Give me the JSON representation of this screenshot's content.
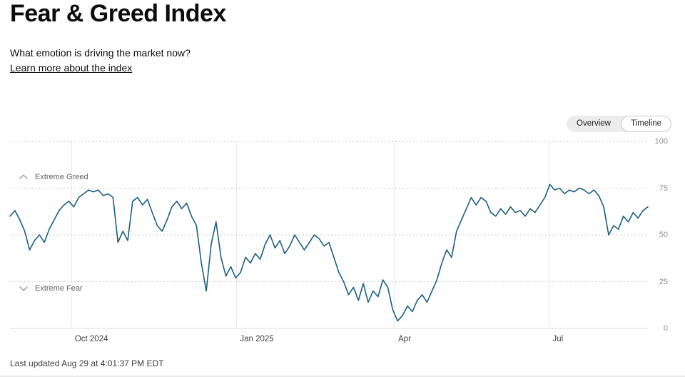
{
  "header": {
    "title": "Fear & Greed Index",
    "subtitle": "What emotion is driving the market now?",
    "link_label": "Learn more about the index"
  },
  "toggle": {
    "options": [
      {
        "label": "Overview",
        "selected": false
      },
      {
        "label": "Timeline",
        "selected": true
      }
    ]
  },
  "chart_data": {
    "type": "line",
    "title": "Fear & Greed Index timeline",
    "legend": "off",
    "grid": "horizontal-dashed, monthly-vertical",
    "ylim": [
      0,
      100
    ],
    "y_ticks": [
      0,
      25,
      50,
      75,
      100
    ],
    "x_ticks": [
      {
        "label": "Oct 2024",
        "pos": 0.096
      },
      {
        "label": "Jan 2025",
        "pos": 0.355
      },
      {
        "label": "Apr",
        "pos": 0.603
      },
      {
        "label": "Jul",
        "pos": 0.845
      }
    ],
    "zones": [
      {
        "label": "Extreme Greed",
        "threshold": 75
      },
      {
        "label": "Extreme Fear",
        "threshold": 25
      }
    ],
    "line_color": "#1a5f7e",
    "x_range_note": "approx Sep 2024 through Aug 29 2025, evenly spaced samples",
    "values": [
      60,
      63,
      58,
      52,
      42,
      47,
      50,
      46,
      53,
      58,
      63,
      66,
      68,
      65,
      70,
      72,
      74,
      73,
      74,
      71,
      72,
      70,
      46,
      52,
      47,
      68,
      70,
      66,
      69,
      62,
      55,
      52,
      58,
      65,
      68,
      64,
      67,
      60,
      55,
      35,
      20,
      45,
      57,
      38,
      28,
      33,
      27,
      30,
      38,
      35,
      40,
      37,
      45,
      50,
      43,
      47,
      40,
      44,
      50,
      46,
      42,
      46,
      50,
      48,
      44,
      46,
      38,
      30,
      25,
      18,
      22,
      15,
      24,
      14,
      20,
      17,
      26,
      22,
      10,
      4,
      7,
      12,
      9,
      15,
      18,
      14,
      20,
      26,
      35,
      42,
      38,
      52,
      58,
      64,
      70,
      66,
      70,
      68,
      62,
      60,
      64,
      61,
      65,
      62,
      63,
      60,
      64,
      62,
      66,
      70,
      77,
      74,
      75,
      72,
      74,
      73,
      75,
      74,
      72,
      74,
      71,
      65,
      50,
      55,
      53,
      60,
      57,
      62,
      59,
      63,
      65
    ]
  },
  "footer": {
    "last_updated": "Last updated Aug 29 at 4:01:37 PM EDT"
  },
  "colors": {
    "accent": "#1a5f7e",
    "grid": "#c9c9c9",
    "axis_text": "#8e8e8e"
  }
}
